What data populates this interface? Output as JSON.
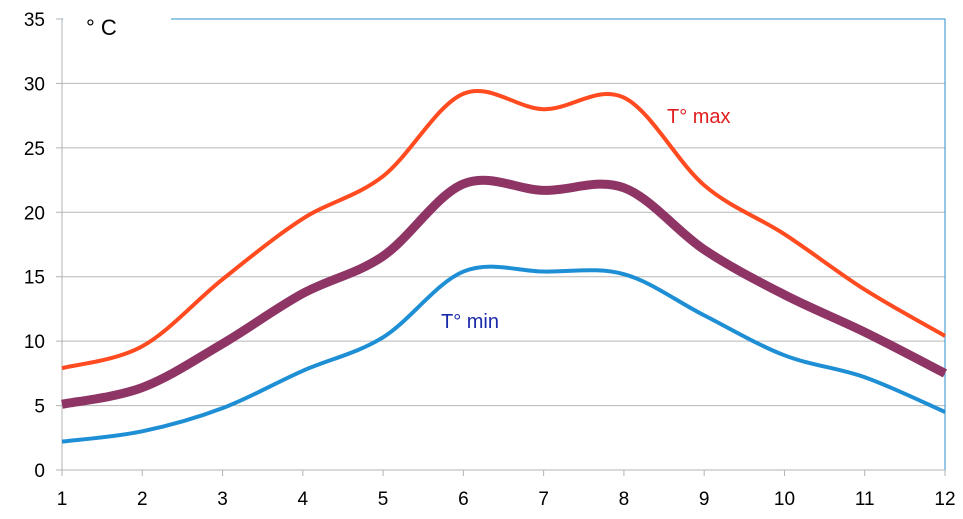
{
  "chart_data": {
    "type": "line",
    "x": [
      1,
      2,
      3,
      4,
      5,
      6,
      7,
      8,
      9,
      10,
      11,
      12
    ],
    "xlim": [
      1,
      12
    ],
    "ylim": [
      0,
      35
    ],
    "yticks": [
      0,
      5,
      10,
      15,
      20,
      25,
      30,
      35
    ],
    "grid": true,
    "unit_label": "° C",
    "series": [
      {
        "name": "T° max",
        "color": "#ff4b1f",
        "values": [
          7.9,
          9.6,
          14.8,
          19.5,
          22.8,
          29.2,
          28.0,
          28.9,
          22.1,
          18.3,
          14.0,
          10.4
        ]
      },
      {
        "name": "",
        "color": "#8e3566",
        "values": [
          5.1,
          6.4,
          9.8,
          13.7,
          16.6,
          22.2,
          21.7,
          21.9,
          17.1,
          13.6,
          10.7,
          7.5
        ]
      },
      {
        "name": "T° min",
        "color": "#1e8fd5",
        "values": [
          2.2,
          3.0,
          4.8,
          7.7,
          10.3,
          15.4,
          15.4,
          15.2,
          12.0,
          8.9,
          7.2,
          4.5
        ]
      }
    ]
  }
}
